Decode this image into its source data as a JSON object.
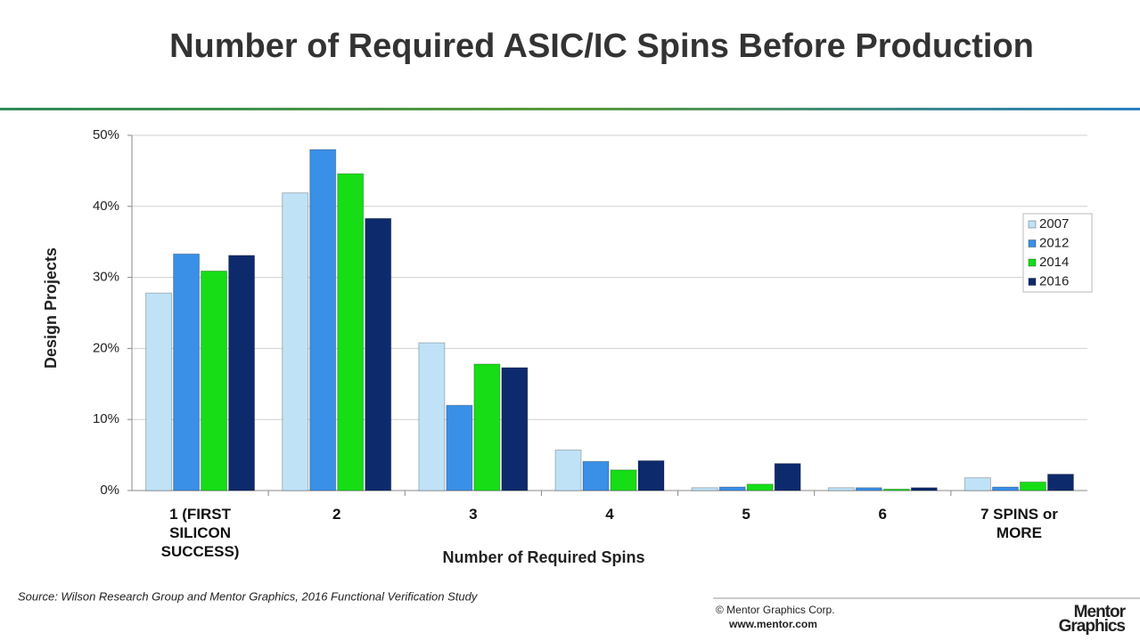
{
  "chart_data": {
    "type": "bar",
    "title": "Number of Required ASIC/IC Spins Before Production",
    "categories": [
      "1 (FIRST SILICON SUCCESS)",
      "2",
      "3",
      "4",
      "5",
      "6",
      "7 SPINS or MORE"
    ],
    "series": [
      {
        "name": "2007",
        "color": "#bfe2f7",
        "values": [
          27.8,
          41.9,
          20.8,
          5.7,
          0.4,
          0.4,
          1.8
        ]
      },
      {
        "name": "2012",
        "color": "#3a8fe6",
        "values": [
          33.3,
          48.0,
          12.0,
          4.1,
          0.5,
          0.4,
          0.5
        ]
      },
      {
        "name": "2014",
        "color": "#16dd16",
        "values": [
          30.9,
          44.6,
          17.8,
          2.9,
          0.9,
          0.2,
          1.2
        ]
      },
      {
        "name": "2016",
        "color": "#0d2a6c",
        "values": [
          33.1,
          38.3,
          17.3,
          4.2,
          3.8,
          0.4,
          2.3
        ]
      }
    ],
    "ylim": [
      0,
      50
    ],
    "yticks": [
      {
        "value": 0,
        "label": "0%"
      },
      {
        "value": 10,
        "label": "10%"
      },
      {
        "value": 20,
        "label": "20%"
      },
      {
        "value": 30,
        "label": "30%"
      },
      {
        "value": 40,
        "label": "40%"
      },
      {
        "value": 50,
        "label": "50%"
      }
    ],
    "grid": true,
    "y_label": "Design Projects",
    "x_label": "Number of Required Spins",
    "legend": "right"
  },
  "footer": {
    "source": "Source:  Wilson Research Group and Mentor Graphics, 2016 Functional Verification Study",
    "copyright": "© Mentor Graphics Corp.",
    "url": "www.mentor.com",
    "logo_line1": "Mentor",
    "logo_line2": "Graphics"
  }
}
